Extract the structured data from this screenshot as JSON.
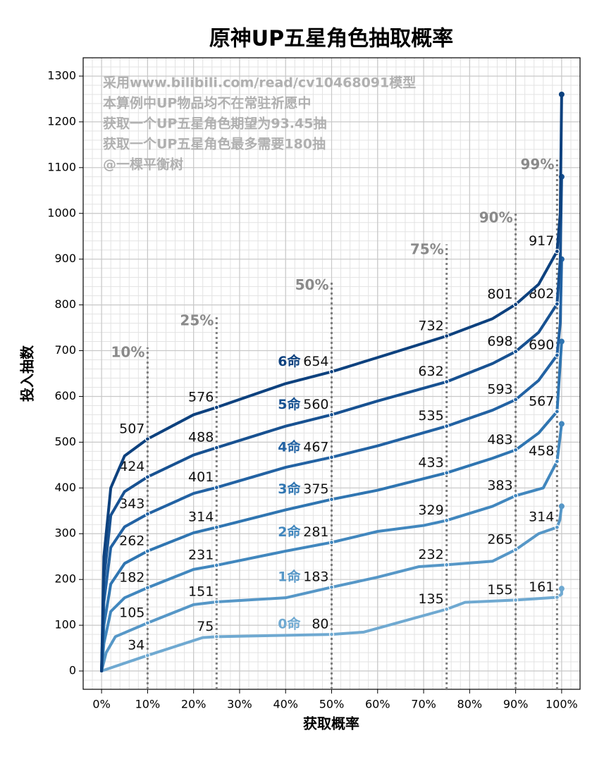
{
  "chart_data": {
    "type": "line",
    "title": "原神UP五星角色抽取概率",
    "xlabel": "获取概率",
    "ylabel": "投入抽数",
    "annotations": [
      "采用www.bilibili.com/read/cv10468091模型",
      "本算例中UP物品均不在常驻祈愿中",
      "获取一个UP五星角色期望为93.45抽",
      "获取一个UP五星角色最多需要180抽",
      "@一棵平衡树"
    ],
    "xlim": [
      -4,
      104
    ],
    "ylim": [
      -40,
      1340
    ],
    "xticks": [
      {
        "value": 0,
        "label": "0%"
      },
      {
        "value": 10,
        "label": "10%"
      },
      {
        "value": 20,
        "label": "20%"
      },
      {
        "value": 30,
        "label": "30%"
      },
      {
        "value": 40,
        "label": "40%"
      },
      {
        "value": 50,
        "label": "50%"
      },
      {
        "value": 60,
        "label": "60%"
      },
      {
        "value": 70,
        "label": "70%"
      },
      {
        "value": 80,
        "label": "80%"
      },
      {
        "value": 90,
        "label": "90%"
      },
      {
        "value": 100,
        "label": "100%"
      }
    ],
    "yticks": [
      0,
      100,
      200,
      300,
      400,
      500,
      600,
      700,
      800,
      900,
      1000,
      1100,
      1200,
      1300
    ],
    "grid": true,
    "xminor_step": 2,
    "yminor_step": 20,
    "reference_lines": [
      {
        "value": 10,
        "label": "10%"
      },
      {
        "value": 25,
        "label": "25%"
      },
      {
        "value": 50,
        "label": "50%"
      },
      {
        "value": 75,
        "label": "75%"
      },
      {
        "value": 90,
        "label": "90%"
      },
      {
        "value": 99,
        "label": "99%"
      }
    ],
    "series": [
      {
        "name": "0命",
        "color": "#6fa9d1",
        "x": [
          0,
          10,
          22,
          25,
          50,
          57,
          75,
          79,
          90,
          99,
          100,
          100
        ],
        "values": [
          0,
          34,
          73,
          75,
          80,
          85,
          135,
          150,
          155,
          161,
          168,
          180
        ]
      },
      {
        "name": "1命",
        "color": "#5697c7",
        "x": [
          0,
          1,
          3,
          10,
          20,
          25,
          40,
          50,
          60,
          69,
          75,
          85,
          90,
          95,
          99,
          99.6,
          100
        ],
        "values": [
          0,
          40,
          75,
          105,
          145,
          151,
          160,
          183,
          205,
          228,
          232,
          240,
          265,
          300,
          314,
          330,
          360
        ]
      },
      {
        "name": "2命",
        "color": "#4187be",
        "x": [
          0,
          0.5,
          2,
          5,
          10,
          20,
          25,
          40,
          50,
          60,
          70,
          75,
          85,
          90,
          96,
          99,
          100
        ],
        "values": [
          0,
          60,
          130,
          160,
          182,
          222,
          231,
          262,
          281,
          305,
          318,
          329,
          360,
          383,
          400,
          458,
          540
        ]
      },
      {
        "name": "3命",
        "color": "#2f75b1",
        "x": [
          0,
          0.5,
          2,
          5,
          10,
          20,
          25,
          40,
          50,
          60,
          75,
          85,
          90,
          95,
          99,
          100
        ],
        "values": [
          0,
          100,
          190,
          235,
          262,
          302,
          314,
          352,
          375,
          395,
          433,
          465,
          483,
          520,
          567,
          720
        ]
      },
      {
        "name": "4命",
        "color": "#2262a3",
        "x": [
          0,
          0.5,
          2,
          5,
          10,
          20,
          25,
          40,
          50,
          60,
          75,
          85,
          90,
          95,
          99,
          99.7,
          100
        ],
        "values": [
          0,
          150,
          270,
          315,
          343,
          388,
          401,
          445,
          467,
          492,
          535,
          570,
          593,
          635,
          690,
          760,
          900
        ]
      },
      {
        "name": "5命",
        "color": "#175191",
        "x": [
          0,
          0.5,
          2,
          5,
          10,
          20,
          25,
          40,
          50,
          60,
          75,
          85,
          90,
          95,
          99,
          99.7,
          100
        ],
        "values": [
          0,
          200,
          340,
          392,
          424,
          472,
          488,
          535,
          560,
          590,
          632,
          672,
          698,
          740,
          802,
          900,
          1080
        ]
      },
      {
        "name": "6命",
        "color": "#0d417e",
        "x": [
          0,
          0.5,
          2,
          5,
          10,
          20,
          25,
          40,
          50,
          60,
          75,
          85,
          90,
          95,
          99,
          99.7,
          100
        ],
        "values": [
          0,
          250,
          400,
          470,
          507,
          560,
          576,
          628,
          654,
          685,
          732,
          770,
          801,
          845,
          917,
          1000,
          1260
        ]
      }
    ]
  }
}
